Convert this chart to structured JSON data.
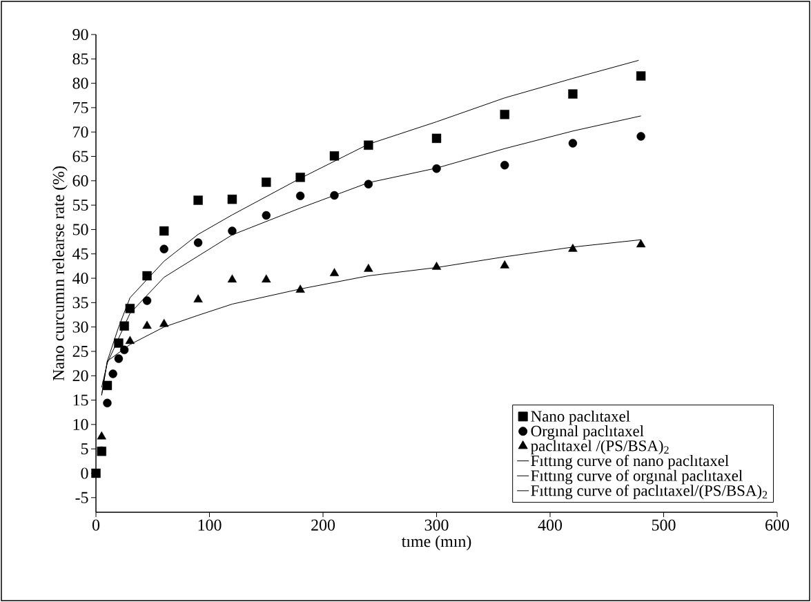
{
  "chart_data": {
    "type": "scatter",
    "xlabel": "tıme (mın)",
    "ylabel": "Nano curcumın relearse rate (%)",
    "xlim": [
      0,
      600
    ],
    "ylim": [
      -8,
      90
    ],
    "xticks": [
      0,
      100,
      200,
      300,
      400,
      500,
      600
    ],
    "yticks": [
      -5,
      0,
      5,
      10,
      15,
      20,
      25,
      30,
      35,
      40,
      45,
      50,
      55,
      60,
      65,
      70,
      75,
      80,
      85,
      90
    ],
    "legend": "bottom right",
    "grid": false,
    "series": [
      {
        "name": "Nano paclıtaxel",
        "marker": "square",
        "color": "#000000",
        "x": [
          0,
          5,
          10,
          20,
          25,
          30,
          45,
          60,
          90,
          120,
          150,
          180,
          210,
          240,
          300,
          360,
          420,
          480
        ],
        "values": [
          0,
          4.5,
          18,
          26.7,
          30.2,
          33.8,
          40.5,
          49.7,
          56,
          56.2,
          59.7,
          60.7,
          65.1,
          67.3,
          68.7,
          73.6,
          77.8,
          81.5
        ]
      },
      {
        "name": "Orgınal paclıtaxel",
        "marker": "circle",
        "color": "#000000",
        "x": [
          5,
          10,
          15,
          20,
          25,
          45,
          60,
          90,
          120,
          150,
          180,
          210,
          240,
          300,
          360,
          420,
          480
        ],
        "values": [
          4.6,
          14.4,
          20.4,
          23.5,
          25.3,
          35.4,
          46,
          47.3,
          49.7,
          52.9,
          56.9,
          57,
          59.3,
          62.5,
          63.2,
          67.7,
          69.1
        ]
      },
      {
        "name": "paclıtaxel /(PS/BSA)$_{2}$",
        "marker": "triangle",
        "color": "#000000",
        "x": [
          5,
          30,
          45,
          60,
          90,
          120,
          150,
          180,
          210,
          240,
          300,
          360,
          420,
          480
        ],
        "values": [
          7.5,
          27.1,
          30.2,
          30.6,
          35.6,
          39.7,
          39.7,
          37.6,
          41,
          41.9,
          42.3,
          42.6,
          46,
          46.9
        ]
      },
      {
        "name": "Fıttıng curve of nano paclıtaxel",
        "type": "line",
        "marker": "none",
        "color": "#000000",
        "x": [
          5,
          10,
          20,
          30,
          60,
          90,
          120,
          180,
          240,
          300,
          360,
          420,
          478
        ],
        "values": [
          16,
          23,
          30,
          36,
          43.5,
          49,
          53,
          60.5,
          67.5,
          72.1,
          77,
          81,
          84.7
        ]
      },
      {
        "name": "Fıttıng curve of orgınal paclıtaxel",
        "type": "line",
        "marker": "none",
        "color": "#000000",
        "x": [
          5,
          10,
          30,
          60,
          120,
          180,
          240,
          300,
          360,
          420,
          480
        ],
        "values": [
          17.6,
          22.6,
          32.8,
          40.2,
          48.9,
          54.4,
          59.6,
          62.6,
          66.6,
          70.2,
          73.3
        ]
      },
      {
        "name": "Fıttıng curve of paclıtaxel/(PS/BSA)$_{2}$",
        "type": "line",
        "marker": "none",
        "color": "#000000",
        "x": [
          5,
          10,
          30,
          60,
          90,
          120,
          180,
          240,
          300,
          360,
          420,
          480
        ],
        "values": [
          16,
          23,
          26.4,
          30,
          32.4,
          34.7,
          37.8,
          40.5,
          42.2,
          44.4,
          46.4,
          47.9
        ]
      }
    ]
  }
}
